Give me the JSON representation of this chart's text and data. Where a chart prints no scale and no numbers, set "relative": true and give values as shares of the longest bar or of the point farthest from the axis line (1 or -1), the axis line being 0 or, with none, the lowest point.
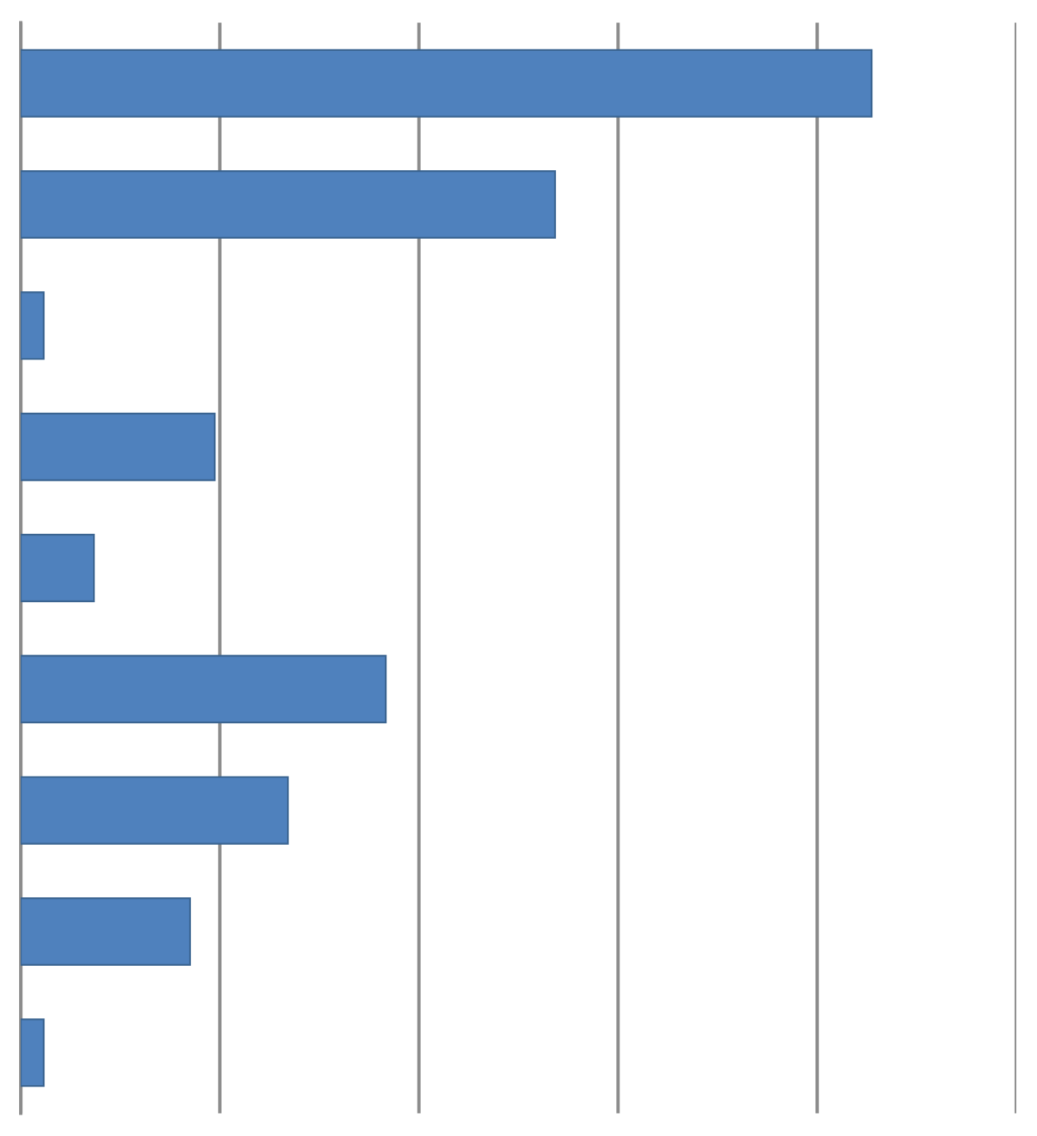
{
  "chart_data": {
    "type": "bar",
    "orientation": "horizontal",
    "relative": true,
    "categories": [
      null,
      null,
      null,
      null,
      null,
      null,
      null,
      null,
      null
    ],
    "values": [
      1,
      0.628,
      0.027,
      0.228,
      0.086,
      0.429,
      0.314,
      0.199,
      0.027
    ],
    "color": "#4f81bd",
    "grid": "x",
    "tick_labels": false
  }
}
